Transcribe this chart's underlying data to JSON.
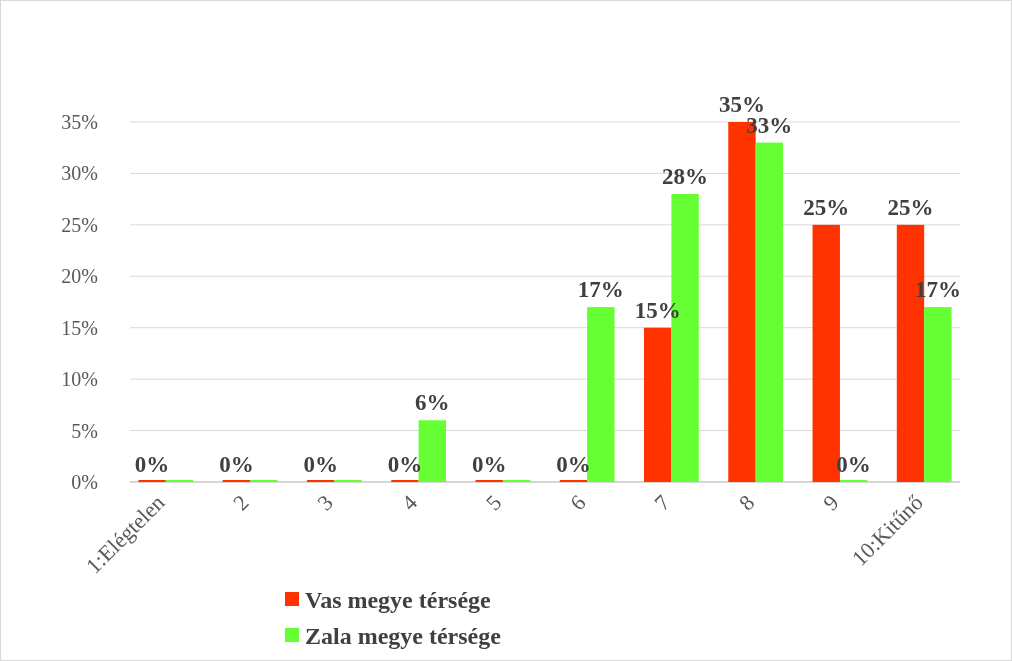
{
  "chart_data": {
    "type": "bar",
    "categories": [
      "1:Elégtelen",
      "2",
      "3",
      "4",
      "5",
      "6",
      "7",
      "8",
      "9",
      "10:Kitűnő"
    ],
    "series": [
      {
        "name": "Vas megye térsége",
        "color": "#ff3300",
        "values": [
          0,
          0,
          0,
          0,
          0,
          0,
          15,
          35,
          25,
          25
        ],
        "value_labels": [
          "0%",
          "0%",
          "0%",
          "0%",
          "0%",
          "0%",
          "15%",
          "35%",
          "25%",
          "25%"
        ]
      },
      {
        "name": "Zala megye térsége",
        "color": "#66ff33",
        "values": [
          0,
          0,
          0,
          6,
          0,
          17,
          28,
          33,
          0,
          17
        ],
        "value_labels": [
          null,
          null,
          null,
          "6%",
          null,
          "17%",
          "28%",
          "33%",
          "0%",
          "17%"
        ]
      }
    ],
    "ylim": [
      0,
      35
    ],
    "yticks": [
      {
        "value": 0,
        "label": "0%"
      },
      {
        "value": 5,
        "label": "5%"
      },
      {
        "value": 10,
        "label": "10%"
      },
      {
        "value": 15,
        "label": "15%"
      },
      {
        "value": 20,
        "label": "20%"
      },
      {
        "value": 25,
        "label": "25%"
      },
      {
        "value": 30,
        "label": "30%"
      },
      {
        "value": 35,
        "label": "35%"
      }
    ],
    "grid": "y",
    "legend": "bottom"
  }
}
